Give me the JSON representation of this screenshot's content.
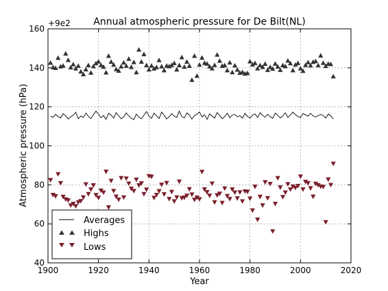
{
  "chart_data": {
    "type": "scatter",
    "title": "Annual atmospheric pressure for De Bilt(NL)",
    "xlabel": "Year",
    "ylabel": "Atmospheric pressure (hPa)",
    "offset_label": "+9e2",
    "xlim": [
      1900,
      2020
    ],
    "ylim": [
      40,
      160
    ],
    "xticks": [
      1900,
      1920,
      1940,
      1960,
      1980,
      2000,
      2020
    ],
    "yticks": [
      40,
      60,
      80,
      100,
      120,
      140,
      160
    ],
    "grid": true,
    "legend_position": "lower-left",
    "x": [
      1901,
      1902,
      1903,
      1904,
      1905,
      1906,
      1907,
      1908,
      1909,
      1910,
      1911,
      1912,
      1913,
      1914,
      1915,
      1916,
      1917,
      1918,
      1919,
      1920,
      1921,
      1922,
      1923,
      1924,
      1925,
      1926,
      1927,
      1928,
      1929,
      1930,
      1931,
      1932,
      1933,
      1934,
      1935,
      1936,
      1937,
      1938,
      1939,
      1940,
      1941,
      1942,
      1943,
      1944,
      1945,
      1946,
      1947,
      1948,
      1949,
      1950,
      1951,
      1952,
      1953,
      1954,
      1955,
      1956,
      1957,
      1958,
      1959,
      1960,
      1961,
      1962,
      1963,
      1964,
      1965,
      1966,
      1967,
      1968,
      1969,
      1970,
      1971,
      1972,
      1973,
      1974,
      1975,
      1976,
      1977,
      1978,
      1979,
      1980,
      1981,
      1982,
      1983,
      1984,
      1985,
      1986,
      1987,
      1988,
      1989,
      1990,
      1991,
      1992,
      1993,
      1994,
      1995,
      1996,
      1997,
      1998,
      1999,
      2000,
      2001,
      2002,
      2003,
      2004,
      2005,
      2006,
      2007,
      2008,
      2009,
      2010,
      2011,
      2012,
      2013
    ],
    "series": [
      {
        "name": "Averages",
        "style": "line",
        "color": "#000000",
        "values": [
          115.2,
          114.6,
          116.1,
          115.0,
          114.3,
          116.5,
          115.4,
          113.8,
          114.9,
          115.7,
          117.2,
          113.9,
          115.3,
          114.5,
          116.8,
          115.1,
          114.0,
          115.9,
          117.8,
          116.2,
          114.4,
          115.6,
          113.6,
          116.7,
          115.8,
          114.2,
          117.0,
          115.5,
          113.9,
          114.8,
          116.9,
          115.3,
          114.1,
          113.5,
          116.3,
          114.7,
          113.9,
          115.8,
          117.6,
          115.2,
          114.1,
          116.8,
          115.4,
          114.0,
          117.3,
          115.7,
          113.8,
          114.9,
          116.5,
          115.2,
          114.6,
          117.8,
          115.1,
          114.3,
          116.9,
          115.8,
          113.7,
          115.5,
          116.2,
          117.4,
          114.8,
          115.9,
          113.6,
          116.4,
          115.3,
          114.2,
          117.1,
          115.6,
          113.9,
          115.0,
          116.7,
          114.4,
          115.8,
          116.1,
          114.9,
          115.5,
          114.2,
          116.6,
          115.1,
          114.3,
          115.8,
          116.4,
          114.5,
          117.0,
          115.6,
          114.7,
          116.2,
          115.0,
          114.1,
          116.8,
          115.7,
          114.3,
          115.4,
          116.9,
          114.6,
          115.8,
          117.3,
          116.0,
          115.1,
          114.5,
          116.6,
          115.9,
          115.2,
          116.7,
          115.3,
          114.8,
          115.5,
          116.1,
          115.6,
          114.2,
          116.3,
          115.4,
          113.8
        ]
      },
      {
        "name": "Highs",
        "style": "marker",
        "marker": "triangle-up",
        "color": "#333333",
        "values": [
          142.5,
          140.2,
          139.8,
          145.0,
          140.6,
          141.0,
          147.2,
          143.9,
          140.1,
          141.7,
          139.6,
          140.9,
          138.0,
          136.6,
          139.1,
          141.2,
          137.4,
          140.7,
          142.2,
          143.1,
          141.3,
          140.4,
          137.5,
          146.0,
          143.0,
          141.5,
          139.2,
          138.4,
          140.6,
          142.6,
          140.9,
          144.5,
          140.3,
          142.8,
          137.6,
          149.2,
          143.0,
          146.9,
          141.2,
          139.0,
          141.0,
          139.5,
          140.2,
          143.8,
          140.6,
          138.6,
          141.0,
          140.7,
          141.3,
          142.3,
          139.0,
          141.2,
          145.3,
          140.4,
          143.0,
          140.9,
          133.7,
          146.0,
          135.8,
          141.5,
          145.1,
          142.4,
          142.0,
          140.6,
          139.6,
          141.3,
          146.6,
          143.5,
          140.9,
          141.2,
          138.6,
          142.6,
          137.6,
          141.1,
          138.9,
          137.3,
          137.7,
          136.9,
          137.2,
          143.2,
          141.6,
          142.3,
          139.6,
          141.2,
          140.3,
          141.9,
          138.8,
          140.3,
          139.4,
          142.0,
          140.5,
          138.8,
          141.2,
          140.7,
          143.6,
          142.2,
          138.6,
          141.5,
          142.3,
          139.6,
          138.3,
          141.3,
          142.7,
          141.1,
          142.9,
          143.3,
          141.2,
          146.2,
          142.4,
          140.8,
          142.0,
          141.8,
          135.5
        ]
      },
      {
        "name": "Lows",
        "style": "marker",
        "marker": "triangle-down",
        "color": "#7a1f2b",
        "values": [
          82.6,
          75.0,
          74.3,
          85.6,
          81.0,
          74.0,
          72.7,
          72.2,
          69.6,
          70.4,
          69.2,
          71.2,
          71.8,
          73.7,
          80.4,
          75.4,
          77.8,
          79.9,
          74.9,
          73.5,
          77.2,
          76.2,
          86.9,
          68.6,
          82.2,
          77.0,
          74.1,
          72.6,
          83.6,
          73.7,
          83.4,
          80.8,
          78.2,
          77.0,
          82.8,
          79.9,
          80.9,
          75.4,
          77.7,
          84.6,
          84.3,
          73.5,
          75.0,
          76.9,
          80.2,
          75.3,
          81.1,
          72.9,
          76.5,
          71.7,
          73.7,
          81.8,
          73.3,
          73.6,
          74.6,
          77.9,
          75.2,
          72.5,
          73.6,
          72.8,
          86.8,
          77.8,
          76.4,
          74.6,
          80.8,
          71.2,
          74.8,
          75.6,
          70.9,
          78.3,
          74.4,
          72.9,
          77.8,
          76.2,
          73.2,
          76.3,
          71.7,
          76.8,
          76.6,
          73.1,
          67.0,
          79.2,
          62.3,
          74.0,
          69.6,
          81.5,
          73.3,
          80.6,
          56.3,
          70.4,
          83.6,
          78.8,
          73.9,
          76.2,
          80.5,
          77.8,
          79.3,
          78.6,
          79.6,
          84.4,
          77.8,
          81.7,
          81.0,
          78.4,
          74.1,
          80.7,
          80.0,
          79.3,
          79.1,
          61.0,
          82.9,
          80.1,
          91.0
        ]
      }
    ]
  }
}
